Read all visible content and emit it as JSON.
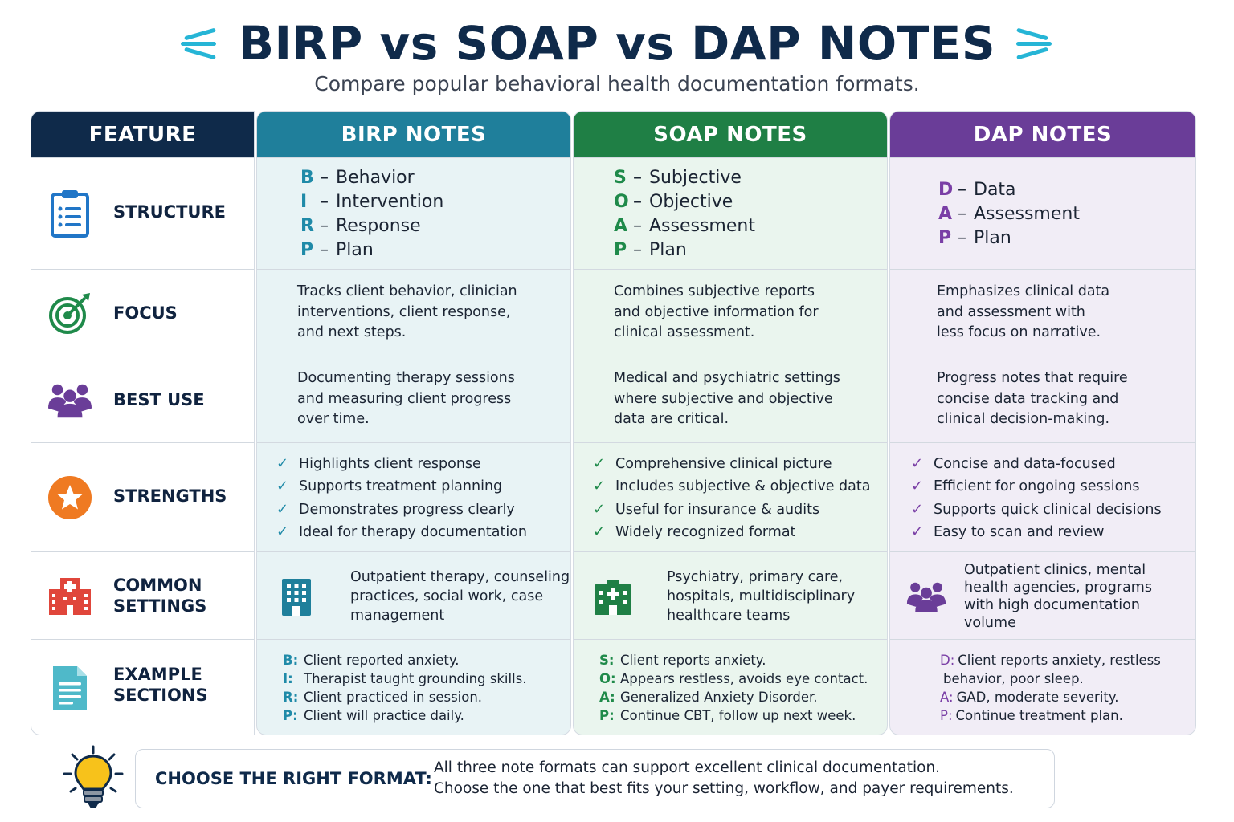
{
  "header": {
    "title": "BIRP vs SOAP vs DAP NOTES",
    "subtitle": "Compare popular behavioral health documentation formats."
  },
  "columns": {
    "feature": "FEATURE",
    "birp": "BIRP NOTES",
    "soap": "SOAP NOTES",
    "dap": "DAP NOTES"
  },
  "features": {
    "structure": "STRUCTURE",
    "focus": "FOCUS",
    "best_use": "BEST USE",
    "strengths": "STRENGTHS",
    "common_settings_1": "COMMON",
    "common_settings_2": "SETTINGS",
    "example_1": "EXAMPLE",
    "example_2": "SECTIONS"
  },
  "birp": {
    "structure": [
      {
        "letter": "B",
        "word": "Behavior"
      },
      {
        "letter": "I",
        "word": "Intervention"
      },
      {
        "letter": "R",
        "word": "Response"
      },
      {
        "letter": "P",
        "word": "Plan"
      }
    ],
    "focus": [
      "Tracks client behavior, clinician",
      "interventions, client response,",
      "and next steps."
    ],
    "best_use": [
      "Documenting therapy sessions",
      "and measuring client progress",
      "over time."
    ],
    "strengths": [
      "Highlights client response",
      "Supports treatment planning",
      "Demonstrates progress clearly",
      "Ideal for therapy documentation"
    ],
    "settings": [
      "Outpatient therapy, counseling",
      "practices, social work, case",
      "management"
    ],
    "example": [
      {
        "k": "B:",
        "v": "Client reported anxiety."
      },
      {
        "k": "I:",
        "v": "Therapist taught grounding skills."
      },
      {
        "k": "R:",
        "v": "Client practiced in session."
      },
      {
        "k": "P:",
        "v": "Client will practice daily."
      }
    ]
  },
  "soap": {
    "structure": [
      {
        "letter": "S",
        "word": "Subjective"
      },
      {
        "letter": "O",
        "word": "Objective"
      },
      {
        "letter": "A",
        "word": "Assessment"
      },
      {
        "letter": "P",
        "word": "Plan"
      }
    ],
    "focus": [
      "Combines subjective reports",
      "and objective information for",
      "clinical assessment."
    ],
    "best_use": [
      "Medical and psychiatric settings",
      "where subjective and objective",
      "data are critical."
    ],
    "strengths": [
      "Comprehensive clinical picture",
      "Includes subjective & objective data",
      "Useful for insurance & audits",
      "Widely recognized format"
    ],
    "settings": [
      "Psychiatry, primary care,",
      "hospitals, multidisciplinary",
      "healthcare teams"
    ],
    "example": [
      {
        "k": "S:",
        "v": "Client reports anxiety."
      },
      {
        "k": "O:",
        "v": "Appears restless, avoids eye contact."
      },
      {
        "k": "A:",
        "v": "Generalized Anxiety Disorder."
      },
      {
        "k": "P:",
        "v": "Continue CBT, follow up next week."
      }
    ]
  },
  "dap": {
    "structure": [
      {
        "letter": "D",
        "word": "Data"
      },
      {
        "letter": "A",
        "word": "Assessment"
      },
      {
        "letter": "P",
        "word": "Plan"
      }
    ],
    "focus": [
      "Emphasizes clinical data",
      "and assessment with",
      "less focus on narrative."
    ],
    "best_use": [
      "Progress notes that require",
      "concise data tracking and",
      "clinical decision-making."
    ],
    "strengths": [
      "Concise and data-focused",
      "Efficient for ongoing sessions",
      "Supports quick clinical decisions",
      "Easy to scan and review"
    ],
    "settings": [
      "Outpatient clinics, mental",
      "health agencies, programs",
      "with high documentation",
      "volume"
    ],
    "example": [
      {
        "k": "D:",
        "v": "Client reports anxiety, restless"
      },
      {
        "k": "",
        "v": "behavior, poor sleep."
      },
      {
        "k": "A:",
        "v": "GAD, moderate severity."
      },
      {
        "k": "P:",
        "v": "Continue treatment plan."
      }
    ]
  },
  "footer": {
    "label": "CHOOSE THE RIGHT FORMAT:",
    "line1": "All three note formats can support excellent clinical documentation.",
    "line2": "Choose the one that best fits your setting, workflow, and payer requirements."
  },
  "colors": {
    "navy": "#0f2a4a",
    "birp": "#1f7f9b",
    "soap": "#1f7f45",
    "dap": "#6a3d98",
    "accent": "#26b5d6"
  },
  "icons": {
    "structure": "clipboard-icon",
    "focus": "target-icon",
    "best_use": "people-icon",
    "strengths": "star-icon",
    "settings": "building-icon",
    "example": "document-icon",
    "tip": "lightbulb-icon"
  }
}
